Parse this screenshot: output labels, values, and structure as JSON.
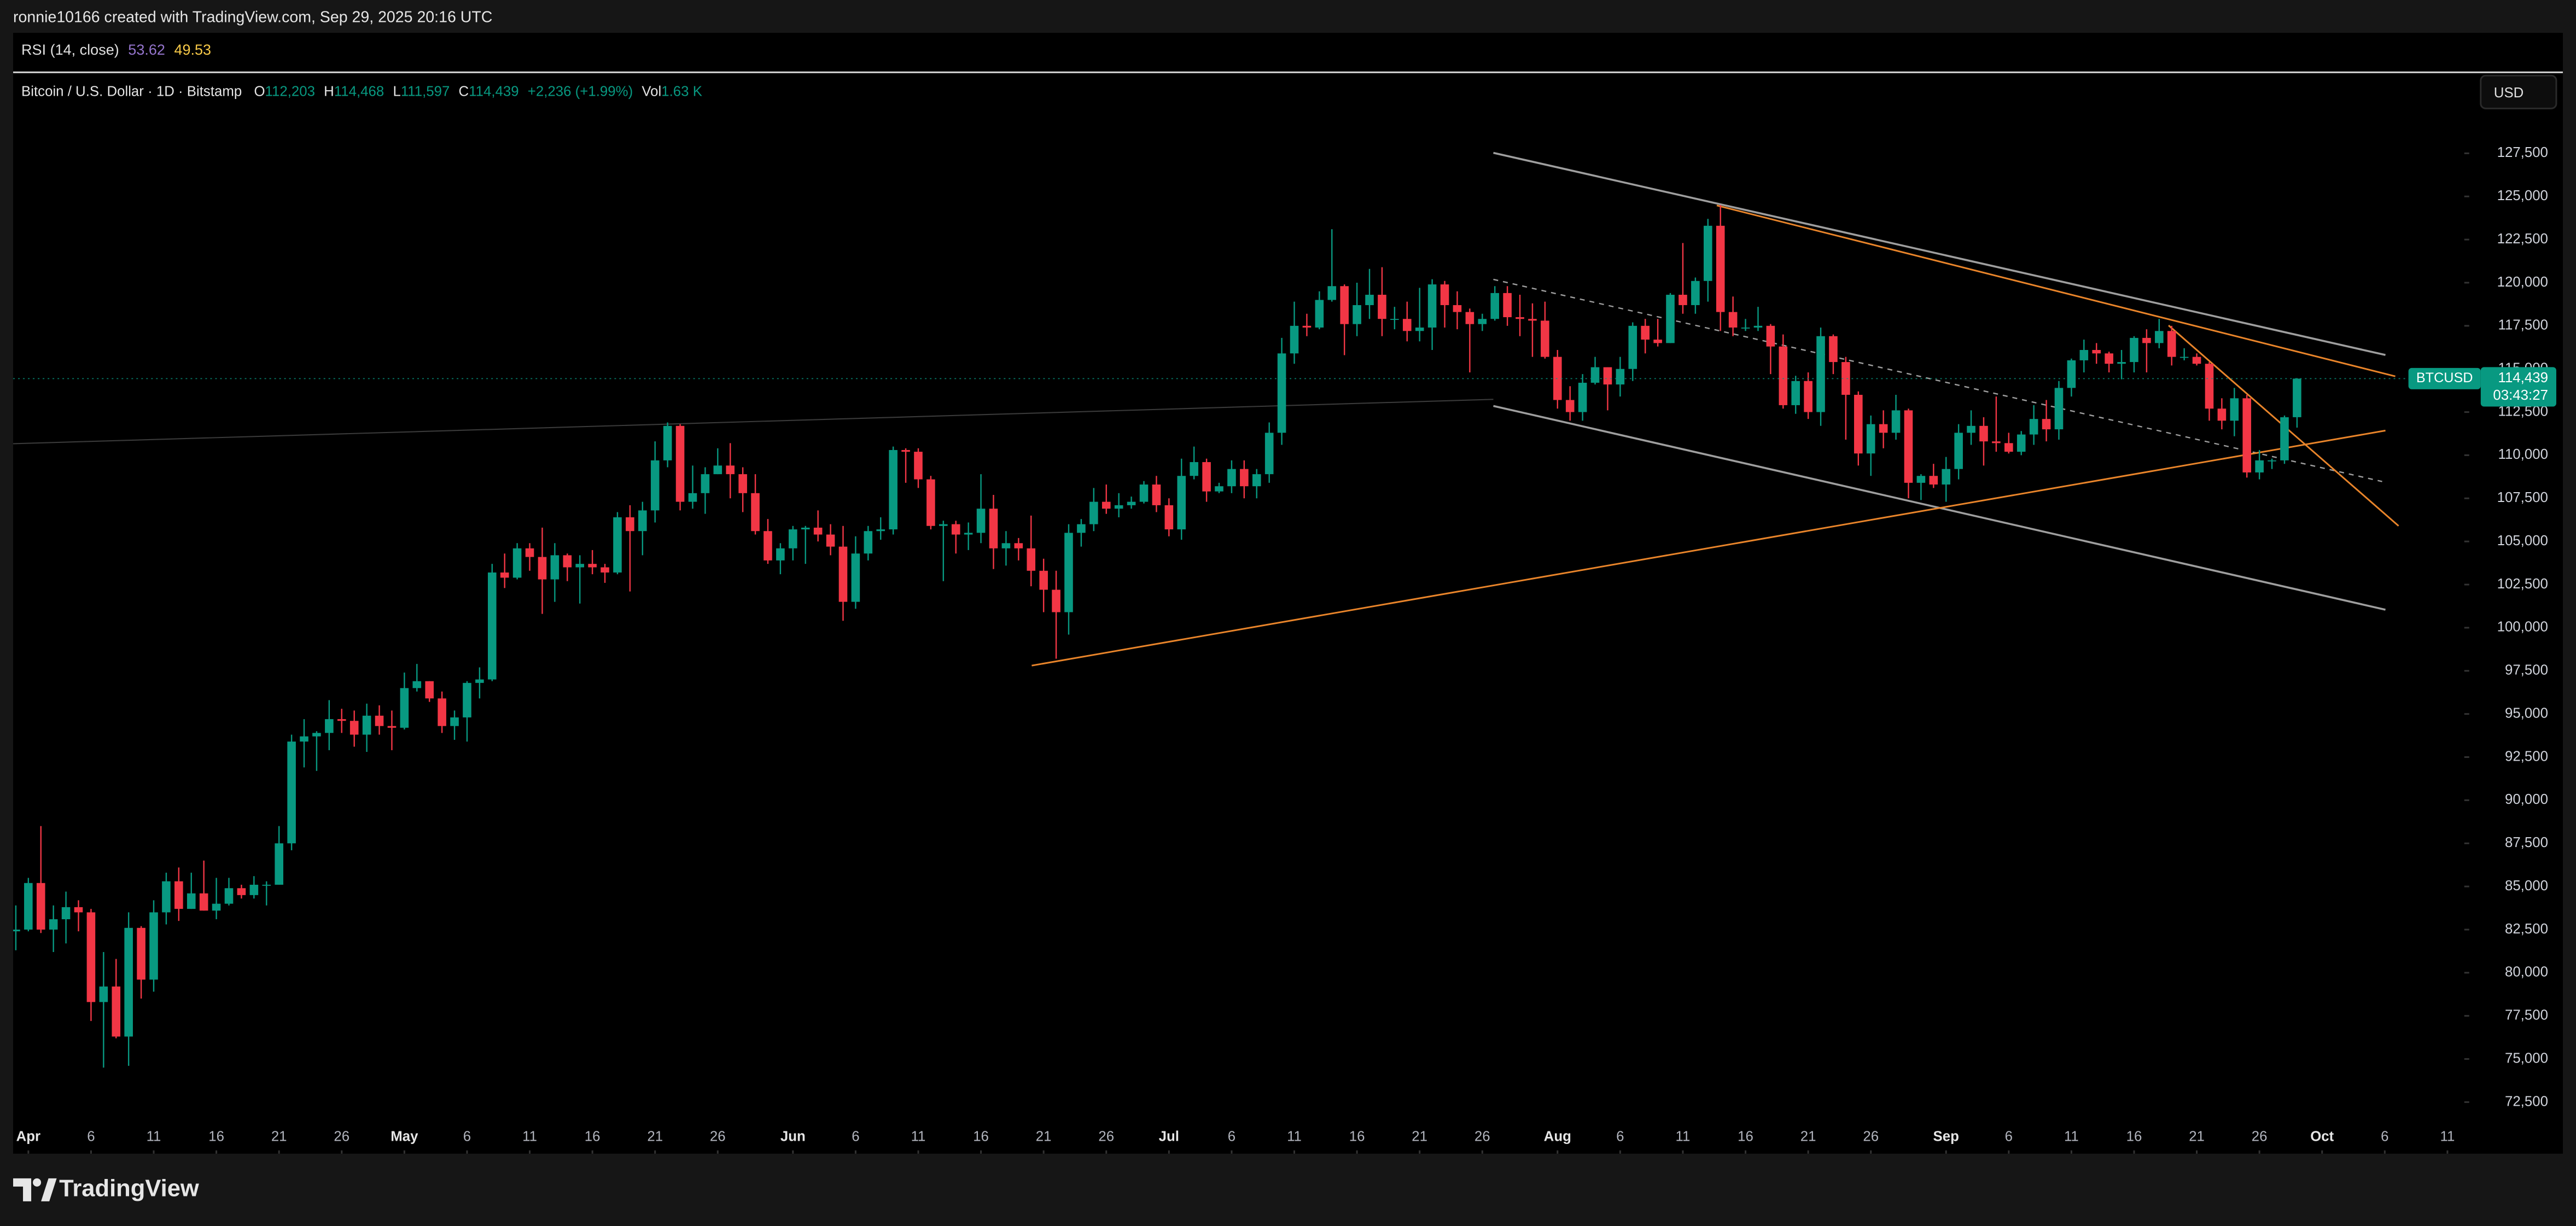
{
  "top_bar": {
    "text": "ronnie10166 created with TradingView.com, Sep 29, 2025 20:16 UTC"
  },
  "rsi": {
    "title": "RSI (14, close)",
    "value": "53.62",
    "signal": "49.53"
  },
  "header": {
    "symbol": "Bitcoin / U.S. Dollar · 1D · Bitstamp",
    "ohlc": [
      {
        "key": "O",
        "value": "112,203"
      },
      {
        "key": "H",
        "value": "114,468"
      },
      {
        "key": "L",
        "value": "111,597"
      },
      {
        "key": "C",
        "value": "114,439"
      }
    ],
    "change": "+2,236 (+1.99%)",
    "volume_key": "Vol",
    "volume": "1.63 K"
  },
  "footer": {
    "brand": "TradingView"
  },
  "chart_data": {
    "type": "candlestick",
    "up_color": "#089981",
    "down_color": "#f23645",
    "currency": "USD",
    "x": [
      "Mar 31",
      "Apr 1",
      "Apr 2",
      "Apr 3",
      "Apr 4",
      "Apr 5",
      "Apr 6",
      "Apr 7",
      "Apr 8",
      "Apr 9",
      "Apr 10",
      "Apr 11",
      "Apr 12",
      "Apr 13",
      "Apr 14",
      "Apr 15",
      "Apr 16",
      "Apr 17",
      "Apr 18",
      "Apr 19",
      "Apr 20",
      "Apr 21",
      "Apr 22",
      "Apr 23",
      "Apr 24",
      "Apr 25",
      "Apr 26",
      "Apr 27",
      "Apr 28",
      "Apr 29",
      "Apr 30",
      "May 1",
      "May 2",
      "May 3",
      "May 4",
      "May 5",
      "May 6",
      "May 7",
      "May 8",
      "May 9",
      "May 10",
      "May 11",
      "May 12",
      "May 13",
      "May 14",
      "May 15",
      "May 16",
      "May 17",
      "May 18",
      "May 19",
      "May 20",
      "May 21",
      "May 22",
      "May 23",
      "May 24",
      "May 25",
      "May 26",
      "May 27",
      "May 28",
      "May 29",
      "May 30",
      "May 31",
      "Jun 1",
      "Jun 2",
      "Jun 3",
      "Jun 4",
      "Jun 5",
      "Jun 6",
      "Jun 7",
      "Jun 8",
      "Jun 9",
      "Jun 10",
      "Jun 11",
      "Jun 12",
      "Jun 13",
      "Jun 14",
      "Jun 15",
      "Jun 16",
      "Jun 17",
      "Jun 18",
      "Jun 19",
      "Jun 20",
      "Jun 21",
      "Jun 22",
      "Jun 23",
      "Jun 24",
      "Jun 25",
      "Jun 26",
      "Jun 27",
      "Jun 28",
      "Jun 29",
      "Jun 30",
      "Jul 1",
      "Jul 2",
      "Jul 3",
      "Jul 4",
      "Jul 5",
      "Jul 6",
      "Jul 7",
      "Jul 8",
      "Jul 9",
      "Jul 10",
      "Jul 11",
      "Jul 12",
      "Jul 13",
      "Jul 14",
      "Jul 15",
      "Jul 16",
      "Jul 17",
      "Jul 18",
      "Jul 19",
      "Jul 20",
      "Jul 21",
      "Jul 22",
      "Jul 23",
      "Jul 24",
      "Jul 25",
      "Jul 26",
      "Jul 27",
      "Jul 28",
      "Jul 29",
      "Jul 30",
      "Jul 31",
      "Aug 1",
      "Aug 2",
      "Aug 3",
      "Aug 4",
      "Aug 5",
      "Aug 6",
      "Aug 7",
      "Aug 8",
      "Aug 9",
      "Aug 10",
      "Aug 11",
      "Aug 12",
      "Aug 13",
      "Aug 14",
      "Aug 15",
      "Aug 16",
      "Aug 17",
      "Aug 18",
      "Aug 19",
      "Aug 20",
      "Aug 21",
      "Aug 22",
      "Aug 23",
      "Aug 24",
      "Aug 25",
      "Aug 26",
      "Aug 27",
      "Aug 28",
      "Aug 29",
      "Aug 30",
      "Aug 31",
      "Sep 1",
      "Sep 2",
      "Sep 3",
      "Sep 4",
      "Sep 5",
      "Sep 6",
      "Sep 7",
      "Sep 8",
      "Sep 9",
      "Sep 10",
      "Sep 11",
      "Sep 12",
      "Sep 13",
      "Sep 14",
      "Sep 15",
      "Sep 16",
      "Sep 17",
      "Sep 18",
      "Sep 19",
      "Sep 20",
      "Sep 21",
      "Sep 22",
      "Sep 23",
      "Sep 24",
      "Sep 25",
      "Sep 26",
      "Sep 27",
      "Sep 28",
      "Sep 29"
    ],
    "open": [
      82400,
      82500,
      85200,
      82500,
      83100,
      83800,
      83500,
      78300,
      79200,
      76300,
      82600,
      79600,
      83500,
      85300,
      83700,
      84600,
      83600,
      84000,
      84900,
      84500,
      85100,
      85100,
      87500,
      93400,
      93700,
      93900,
      94700,
      94600,
      93800,
      94900,
      94300,
      94200,
      96500,
      96900,
      95900,
      94300,
      94800,
      96800,
      97000,
      103200,
      102900,
      104600,
      104100,
      102800,
      104200,
      103500,
      103700,
      103500,
      103200,
      106400,
      105600,
      106800,
      109700,
      111700,
      107300,
      107800,
      108900,
      109400,
      108900,
      107800,
      105600,
      103900,
      104600,
      105700,
      105800,
      105400,
      104700,
      101500,
      104300,
      105600,
      105700,
      110300,
      110200,
      108600,
      105900,
      106000,
      105400,
      105500,
      106900,
      104600,
      104900,
      104600,
      103300,
      102200,
      100900,
      105500,
      106000,
      107300,
      106900,
      107100,
      107300,
      108300,
      107100,
      105700,
      108800,
      109600,
      107900,
      108200,
      109200,
      108200,
      108900,
      111300,
      115900,
      117500,
      117400,
      119000,
      119800,
      117600,
      118700,
      119300,
      117900,
      117900,
      117200,
      117400,
      119900,
      118700,
      118300,
      117600,
      117900,
      119400,
      118000,
      117900,
      117800,
      115700,
      113200,
      112500,
      114200,
      115100,
      114100,
      115000,
      117500,
      116700,
      116500,
      119300,
      118700,
      120100,
      123300,
      118300,
      117400,
      117400,
      117500,
      116300,
      112900,
      114300,
      112500,
      116900,
      115400,
      113500,
      110100,
      111800,
      111300,
      112600,
      108400,
      108800,
      108300,
      109200,
      111300,
      111700,
      110800,
      110700,
      110200,
      111200,
      112100,
      111500,
      113900,
      115500,
      116100,
      115900,
      115300,
      115400,
      116800,
      116500,
      117200,
      115700,
      115700,
      115300,
      112700,
      112000,
      113300,
      109000,
      109700,
      109700,
      112203
    ],
    "high": [
      83900,
      85500,
      88500,
      83900,
      84700,
      84200,
      83700,
      81200,
      80800,
      83500,
      82700,
      84200,
      85800,
      86100,
      85800,
      86500,
      85500,
      85500,
      85100,
      85600,
      85300,
      88500,
      93800,
      94700,
      94000,
      95800,
      95300,
      95200,
      95600,
      95500,
      95200,
      97400,
      97900,
      96900,
      96300,
      95200,
      96900,
      97700,
      103700,
      104300,
      104900,
      104900,
      105800,
      104900,
      104300,
      104200,
      104500,
      103700,
      106700,
      107100,
      107300,
      110800,
      111900,
      111800,
      109400,
      109300,
      110400,
      110700,
      109300,
      108900,
      106300,
      104900,
      105900,
      105900,
      106800,
      106000,
      105900,
      105300,
      105900,
      106400,
      110500,
      110400,
      110400,
      108800,
      106200,
      106200,
      106100,
      108900,
      107700,
      105600,
      105200,
      106500,
      104000,
      103300,
      106000,
      106300,
      108100,
      108300,
      107800,
      107600,
      108500,
      108800,
      107500,
      109800,
      110500,
      109800,
      108400,
      109700,
      109700,
      109200,
      111900,
      116800,
      118900,
      118200,
      119500,
      123100,
      119900,
      120000,
      120800,
      120900,
      118600,
      118900,
      119700,
      120200,
      120100,
      119500,
      118500,
      118200,
      119800,
      119800,
      119300,
      118800,
      118900,
      116100,
      114000,
      114700,
      115700,
      115100,
      115700,
      117700,
      117900,
      117900,
      119400,
      122300,
      120300,
      123700,
      124500,
      119200,
      117900,
      118600,
      117600,
      117000,
      114600,
      114800,
      117400,
      117000,
      115700,
      113700,
      112300,
      112600,
      113500,
      112700,
      108900,
      109500,
      109900,
      111800,
      112600,
      112200,
      113400,
      111300,
      111400,
      112900,
      113200,
      114300,
      115600,
      116700,
      116500,
      116000,
      116100,
      116900,
      117300,
      117900,
      117500,
      116200,
      115900,
      115400,
      113300,
      113900,
      113500,
      110300,
      109800,
      112300,
      114468
    ],
    "low": [
      81300,
      82400,
      82300,
      81200,
      81700,
      82400,
      77200,
      74500,
      76200,
      74600,
      78500,
      78900,
      82800,
      83000,
      83700,
      83600,
      83100,
      83900,
      84300,
      84300,
      83900,
      85100,
      87100,
      91900,
      91700,
      92900,
      93900,
      93100,
      92800,
      93800,
      92900,
      94100,
      96300,
      95700,
      93900,
      93500,
      93400,
      95900,
      96900,
      102300,
      102800,
      103300,
      100800,
      101500,
      102700,
      101400,
      103100,
      102600,
      103100,
      102100,
      104200,
      106100,
      109300,
      106800,
      106900,
      106600,
      108900,
      107500,
      106700,
      105400,
      103700,
      103100,
      103900,
      103700,
      105000,
      104200,
      100400,
      101100,
      103900,
      105100,
      105400,
      108400,
      108100,
      105700,
      102700,
      104300,
      104500,
      104900,
      103400,
      103600,
      103900,
      102400,
      100900,
      98200,
      99600,
      104700,
      105600,
      106600,
      106400,
      106900,
      107200,
      106700,
      105300,
      105100,
      108600,
      107300,
      107800,
      107800,
      107500,
      107500,
      108400,
      110600,
      115300,
      116900,
      117300,
      118900,
      115800,
      116900,
      117900,
      116900,
      117300,
      116600,
      116600,
      116100,
      117400,
      117300,
      114800,
      117200,
      117800,
      117500,
      116900,
      115700,
      115600,
      112700,
      112000,
      112000,
      114100,
      112600,
      113400,
      114300,
      115900,
      116300,
      116500,
      118200,
      118200,
      118900,
      117200,
      116900,
      117200,
      117200,
      114700,
      112700,
      112400,
      112100,
      111700,
      114700,
      110900,
      109400,
      108800,
      110400,
      110900,
      107500,
      107400,
      108100,
      107300,
      108600,
      110600,
      109400,
      110200,
      110100,
      110000,
      110600,
      110800,
      110900,
      113400,
      114800,
      115300,
      114800,
      114400,
      114800,
      114800,
      116200,
      115200,
      115500,
      115200,
      112000,
      111500,
      111100,
      108700,
      108600,
      109200,
      109500,
      111597
    ],
    "close": [
      82500,
      85200,
      82500,
      83100,
      83800,
      83500,
      78300,
      79200,
      76300,
      82600,
      79600,
      83500,
      85300,
      83700,
      84600,
      83600,
      84000,
      84900,
      84500,
      85100,
      85100,
      87500,
      93400,
      93700,
      93900,
      94700,
      94600,
      93800,
      94900,
      94300,
      94200,
      96500,
      96900,
      95900,
      94300,
      94800,
      96800,
      97000,
      103200,
      102900,
      104600,
      104100,
      102800,
      104200,
      103500,
      103700,
      103500,
      103200,
      106400,
      105600,
      106800,
      109700,
      111700,
      107300,
      107800,
      108900,
      109400,
      108900,
      107800,
      105600,
      103900,
      104600,
      105700,
      105800,
      105400,
      104700,
      101500,
      104300,
      105600,
      105700,
      110300,
      110200,
      108600,
      105900,
      106000,
      105400,
      105500,
      106900,
      104600,
      104900,
      104600,
      103300,
      102200,
      100900,
      105500,
      106000,
      107300,
      106900,
      107100,
      107300,
      108300,
      107100,
      105700,
      108800,
      109600,
      107900,
      108200,
      109200,
      108200,
      108900,
      111300,
      115900,
      117500,
      117400,
      119000,
      119800,
      117600,
      118700,
      119300,
      117900,
      117900,
      117200,
      117400,
      119900,
      118700,
      118300,
      117600,
      117900,
      119400,
      118000,
      117900,
      117800,
      115700,
      113200,
      112500,
      114200,
      115100,
      114100,
      115000,
      117500,
      116700,
      116500,
      119300,
      118700,
      120100,
      123300,
      118300,
      117400,
      117400,
      117500,
      116300,
      112900,
      114300,
      112500,
      116900,
      115400,
      113500,
      110100,
      111800,
      111300,
      112600,
      108400,
      108800,
      108300,
      109200,
      111300,
      111700,
      110800,
      110700,
      110200,
      111200,
      112100,
      111500,
      113900,
      115500,
      116100,
      115900,
      115300,
      115400,
      116800,
      116500,
      117200,
      115700,
      115700,
      115300,
      112700,
      112000,
      113300,
      109000,
      109700,
      109700,
      112200,
      114439
    ],
    "xlim": [
      "Mar 30",
      "Oct 13"
    ],
    "xticks": [
      {
        "value": "Apr 1",
        "label": "Apr"
      },
      {
        "value": "Apr 6",
        "label": "6"
      },
      {
        "value": "Apr 11",
        "label": "11"
      },
      {
        "value": "Apr 16",
        "label": "16"
      },
      {
        "value": "Apr 21",
        "label": "21"
      },
      {
        "value": "Apr 26",
        "label": "26"
      },
      {
        "value": "May 1",
        "label": "May"
      },
      {
        "value": "May 6",
        "label": "6"
      },
      {
        "value": "May 11",
        "label": "11"
      },
      {
        "value": "May 16",
        "label": "16"
      },
      {
        "value": "May 21",
        "label": "21"
      },
      {
        "value": "May 26",
        "label": "26"
      },
      {
        "value": "Jun 1",
        "label": "Jun"
      },
      {
        "value": "Jun 6",
        "label": "6"
      },
      {
        "value": "Jun 11",
        "label": "11"
      },
      {
        "value": "Jun 16",
        "label": "16"
      },
      {
        "value": "Jun 21",
        "label": "21"
      },
      {
        "value": "Jun 26",
        "label": "26"
      },
      {
        "value": "Jul 1",
        "label": "Jul"
      },
      {
        "value": "Jul 6",
        "label": "6"
      },
      {
        "value": "Jul 11",
        "label": "11"
      },
      {
        "value": "Jul 16",
        "label": "16"
      },
      {
        "value": "Jul 21",
        "label": "21"
      },
      {
        "value": "Jul 26",
        "label": "26"
      },
      {
        "value": "Aug 1",
        "label": "Aug"
      },
      {
        "value": "Aug 6",
        "label": "6"
      },
      {
        "value": "Aug 11",
        "label": "11"
      },
      {
        "value": "Aug 16",
        "label": "16"
      },
      {
        "value": "Aug 21",
        "label": "21"
      },
      {
        "value": "Aug 26",
        "label": "26"
      },
      {
        "value": "Sep 1",
        "label": "Sep"
      },
      {
        "value": "Sep 6",
        "label": "6"
      },
      {
        "value": "Sep 11",
        "label": "11"
      },
      {
        "value": "Sep 16",
        "label": "16"
      },
      {
        "value": "Sep 21",
        "label": "21"
      },
      {
        "value": "Sep 26",
        "label": "26"
      },
      {
        "value": "Oct 1",
        "label": "Oct"
      },
      {
        "value": "Oct 6",
        "label": "6"
      },
      {
        "value": "Oct 11",
        "label": "11"
      }
    ],
    "ylim": [
      69700,
      132100
    ],
    "yticks": [
      {
        "value": 72500,
        "label": "72,500"
      },
      {
        "value": 75000,
        "label": "75,000"
      },
      {
        "value": 77500,
        "label": "77,500"
      },
      {
        "value": 80000,
        "label": "80,000"
      },
      {
        "value": 82500,
        "label": "82,500"
      },
      {
        "value": 85000,
        "label": "85,000"
      },
      {
        "value": 87500,
        "label": "87,500"
      },
      {
        "value": 90000,
        "label": "90,000"
      },
      {
        "value": 92500,
        "label": "92,500"
      },
      {
        "value": 95000,
        "label": "95,000"
      },
      {
        "value": 97500,
        "label": "97,500"
      },
      {
        "value": 100000,
        "label": "100,000"
      },
      {
        "value": 102500,
        "label": "102,500"
      },
      {
        "value": 105000,
        "label": "105,000"
      },
      {
        "value": 107500,
        "label": "107,500"
      },
      {
        "value": 110000,
        "label": "110,000"
      },
      {
        "value": 112500,
        "label": "112,500"
      },
      {
        "value": 115000,
        "label": "115,000"
      },
      {
        "value": 117500,
        "label": "117,500"
      },
      {
        "value": 120000,
        "label": "120,000"
      },
      {
        "value": 122500,
        "label": "122,500"
      },
      {
        "value": 125000,
        "label": "125,000"
      },
      {
        "value": 127500,
        "label": "127,500"
      }
    ],
    "price_tag": {
      "symbol": "BTCUSD",
      "value": 114439,
      "label": "114,439",
      "countdown": "03:43:27"
    }
  }
}
